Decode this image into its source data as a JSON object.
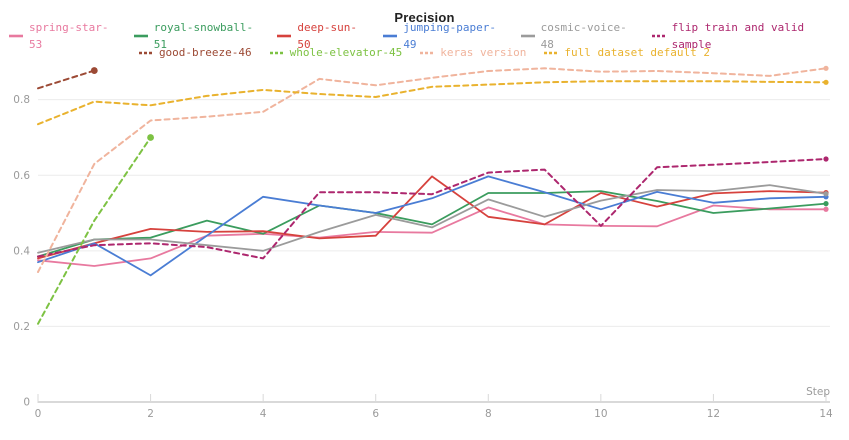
{
  "colors": {
    "background": "#ffffff",
    "title": "#222222",
    "grid": "#ececec",
    "axis": "#d9d9d9",
    "tick_label": "#9a9a9a"
  },
  "chart_data": {
    "type": "line",
    "title": "Precision",
    "xlabel": "Step",
    "x_ticks": [
      0,
      2,
      4,
      6,
      8,
      10,
      12,
      14
    ],
    "y_ticks": [
      0,
      0.2,
      0.4,
      0.6,
      0.8
    ],
    "xlim": [
      0,
      14
    ],
    "ylim": [
      0,
      0.905
    ],
    "grid": true,
    "legend_position": "top",
    "legend_rows": [
      [
        0,
        1,
        2,
        3,
        4,
        5
      ],
      [
        6,
        7,
        8,
        9
      ]
    ],
    "series": [
      {
        "name": "spring-star-53",
        "color": "#e8799f",
        "dashed": false,
        "x": [
          0,
          1,
          2,
          3,
          4,
          5,
          6,
          7,
          8,
          9,
          10,
          11,
          12,
          13,
          14
        ],
        "values": [
          0.375,
          0.36,
          0.38,
          0.44,
          0.445,
          0.435,
          0.45,
          0.448,
          0.515,
          0.47,
          0.466,
          0.465,
          0.52,
          0.51,
          0.51
        ]
      },
      {
        "name": "royal-snowball-51",
        "color": "#3b9c5e",
        "dashed": false,
        "x": [
          0,
          1,
          2,
          3,
          4,
          5,
          6,
          7,
          8,
          9,
          10,
          11,
          12,
          13,
          14
        ],
        "values": [
          0.385,
          0.43,
          0.435,
          0.48,
          0.445,
          0.52,
          0.5,
          0.47,
          0.553,
          0.553,
          0.558,
          0.532,
          0.5,
          0.512,
          0.525
        ]
      },
      {
        "name": "deep-sun-50",
        "color": "#d6423d",
        "dashed": false,
        "x": [
          0,
          1,
          2,
          3,
          4,
          5,
          6,
          7,
          8,
          9,
          10,
          11,
          12,
          13,
          14
        ],
        "values": [
          0.38,
          0.42,
          0.458,
          0.45,
          0.452,
          0.433,
          0.44,
          0.597,
          0.49,
          0.47,
          0.553,
          0.517,
          0.552,
          0.558,
          0.554
        ]
      },
      {
        "name": "jumping-paper-49",
        "color": "#4a7dd4",
        "dashed": false,
        "x": [
          0,
          1,
          2,
          3,
          4,
          5,
          6,
          7,
          8,
          9,
          10,
          11,
          12,
          13,
          14
        ],
        "values": [
          0.37,
          0.42,
          0.335,
          0.44,
          0.543,
          0.52,
          0.5,
          0.539,
          0.597,
          0.555,
          0.51,
          0.556,
          0.527,
          0.539,
          0.543
        ]
      },
      {
        "name": "cosmic-voice-48",
        "color": "#9b9b9b",
        "dashed": false,
        "x": [
          0,
          1,
          2,
          3,
          4,
          5,
          6,
          7,
          8,
          9,
          10,
          11,
          12,
          13,
          14
        ],
        "values": [
          0.395,
          0.43,
          0.43,
          0.415,
          0.4,
          0.45,
          0.495,
          0.462,
          0.536,
          0.49,
          0.533,
          0.561,
          0.558,
          0.574,
          0.551
        ]
      },
      {
        "name": "flip train and valid sample",
        "color": "#ad276e",
        "dashed": true,
        "x": [
          0,
          1,
          2,
          3,
          4,
          5,
          6,
          7,
          8,
          9,
          10,
          11,
          12,
          13,
          14
        ],
        "values": [
          0.385,
          0.415,
          0.42,
          0.41,
          0.38,
          0.555,
          0.555,
          0.55,
          0.607,
          0.615,
          0.466,
          0.621,
          0.628,
          0.635,
          0.643
        ]
      },
      {
        "name": "good-breeze-46",
        "color": "#9c4a35",
        "dashed": true,
        "x": [
          0,
          1
        ],
        "values": [
          0.83,
          0.877
        ]
      },
      {
        "name": "whole-elevator-45",
        "color": "#7dc243",
        "dashed": true,
        "x": [
          0,
          1,
          2
        ],
        "values": [
          0.207,
          0.48,
          0.7
        ]
      },
      {
        "name": "keras version",
        "color": "#f0b49d",
        "dashed": true,
        "x": [
          0,
          1,
          2,
          3,
          4,
          5,
          6,
          7,
          8,
          9,
          10,
          11,
          12,
          13,
          14
        ],
        "values": [
          0.344,
          0.63,
          0.745,
          0.755,
          0.768,
          0.855,
          0.838,
          0.858,
          0.876,
          0.883,
          0.874,
          0.876,
          0.87,
          0.863,
          0.883
        ]
      },
      {
        "name": "full dataset default 2",
        "color": "#e9b22e",
        "dashed": true,
        "x": [
          0,
          1,
          2,
          3,
          4,
          5,
          6,
          7,
          8,
          9,
          10,
          11,
          12,
          13,
          14
        ],
        "values": [
          0.735,
          0.795,
          0.785,
          0.81,
          0.826,
          0.815,
          0.807,
          0.834,
          0.84,
          0.846,
          0.849,
          0.849,
          0.849,
          0.847,
          0.846
        ]
      }
    ]
  }
}
